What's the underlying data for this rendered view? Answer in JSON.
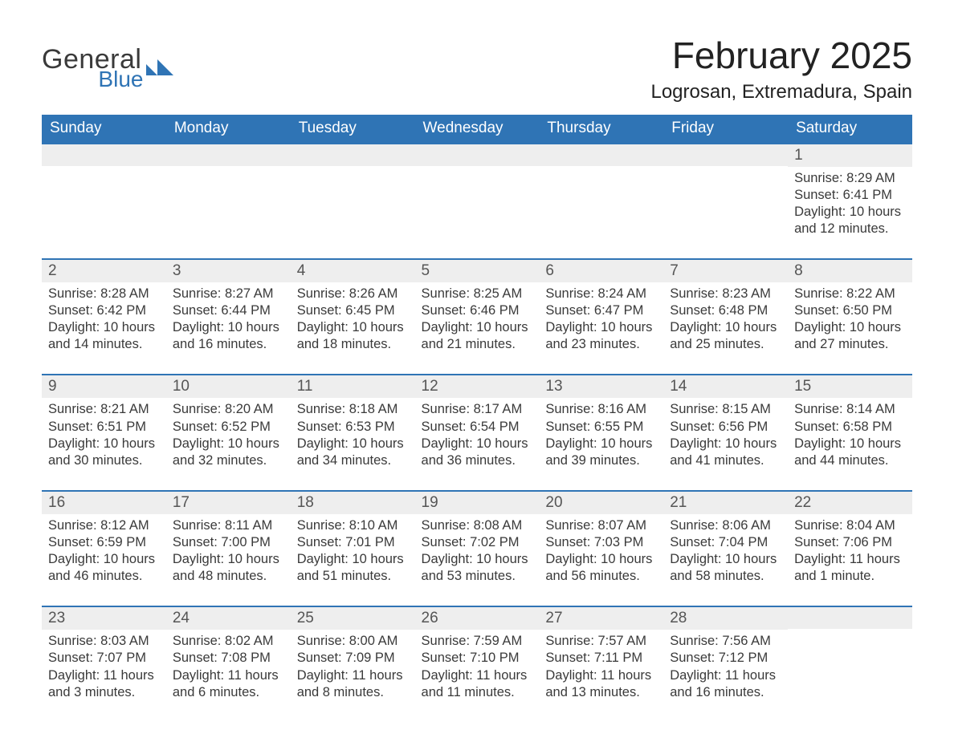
{
  "brand": {
    "general": "General",
    "blue": "Blue"
  },
  "title": "February 2025",
  "location": "Logrosan, Extremadura, Spain",
  "colors": {
    "accent": "#2f74b5",
    "row_band": "#eeeeee",
    "text": "#2b2b2b",
    "background": "#ffffff"
  },
  "dow": [
    "Sunday",
    "Monday",
    "Tuesday",
    "Wednesday",
    "Thursday",
    "Friday",
    "Saturday"
  ],
  "weeks": [
    [
      {
        "day": "",
        "sunrise": "",
        "sunset": "",
        "daylight": ""
      },
      {
        "day": "",
        "sunrise": "",
        "sunset": "",
        "daylight": ""
      },
      {
        "day": "",
        "sunrise": "",
        "sunset": "",
        "daylight": ""
      },
      {
        "day": "",
        "sunrise": "",
        "sunset": "",
        "daylight": ""
      },
      {
        "day": "",
        "sunrise": "",
        "sunset": "",
        "daylight": ""
      },
      {
        "day": "",
        "sunrise": "",
        "sunset": "",
        "daylight": ""
      },
      {
        "day": "1",
        "sunrise": "Sunrise: 8:29 AM",
        "sunset": "Sunset: 6:41 PM",
        "daylight": "Daylight: 10 hours and 12 minutes."
      }
    ],
    [
      {
        "day": "2",
        "sunrise": "Sunrise: 8:28 AM",
        "sunset": "Sunset: 6:42 PM",
        "daylight": "Daylight: 10 hours and 14 minutes."
      },
      {
        "day": "3",
        "sunrise": "Sunrise: 8:27 AM",
        "sunset": "Sunset: 6:44 PM",
        "daylight": "Daylight: 10 hours and 16 minutes."
      },
      {
        "day": "4",
        "sunrise": "Sunrise: 8:26 AM",
        "sunset": "Sunset: 6:45 PM",
        "daylight": "Daylight: 10 hours and 18 minutes."
      },
      {
        "day": "5",
        "sunrise": "Sunrise: 8:25 AM",
        "sunset": "Sunset: 6:46 PM",
        "daylight": "Daylight: 10 hours and 21 minutes."
      },
      {
        "day": "6",
        "sunrise": "Sunrise: 8:24 AM",
        "sunset": "Sunset: 6:47 PM",
        "daylight": "Daylight: 10 hours and 23 minutes."
      },
      {
        "day": "7",
        "sunrise": "Sunrise: 8:23 AM",
        "sunset": "Sunset: 6:48 PM",
        "daylight": "Daylight: 10 hours and 25 minutes."
      },
      {
        "day": "8",
        "sunrise": "Sunrise: 8:22 AM",
        "sunset": "Sunset: 6:50 PM",
        "daylight": "Daylight: 10 hours and 27 minutes."
      }
    ],
    [
      {
        "day": "9",
        "sunrise": "Sunrise: 8:21 AM",
        "sunset": "Sunset: 6:51 PM",
        "daylight": "Daylight: 10 hours and 30 minutes."
      },
      {
        "day": "10",
        "sunrise": "Sunrise: 8:20 AM",
        "sunset": "Sunset: 6:52 PM",
        "daylight": "Daylight: 10 hours and 32 minutes."
      },
      {
        "day": "11",
        "sunrise": "Sunrise: 8:18 AM",
        "sunset": "Sunset: 6:53 PM",
        "daylight": "Daylight: 10 hours and 34 minutes."
      },
      {
        "day": "12",
        "sunrise": "Sunrise: 8:17 AM",
        "sunset": "Sunset: 6:54 PM",
        "daylight": "Daylight: 10 hours and 36 minutes."
      },
      {
        "day": "13",
        "sunrise": "Sunrise: 8:16 AM",
        "sunset": "Sunset: 6:55 PM",
        "daylight": "Daylight: 10 hours and 39 minutes."
      },
      {
        "day": "14",
        "sunrise": "Sunrise: 8:15 AM",
        "sunset": "Sunset: 6:56 PM",
        "daylight": "Daylight: 10 hours and 41 minutes."
      },
      {
        "day": "15",
        "sunrise": "Sunrise: 8:14 AM",
        "sunset": "Sunset: 6:58 PM",
        "daylight": "Daylight: 10 hours and 44 minutes."
      }
    ],
    [
      {
        "day": "16",
        "sunrise": "Sunrise: 8:12 AM",
        "sunset": "Sunset: 6:59 PM",
        "daylight": "Daylight: 10 hours and 46 minutes."
      },
      {
        "day": "17",
        "sunrise": "Sunrise: 8:11 AM",
        "sunset": "Sunset: 7:00 PM",
        "daylight": "Daylight: 10 hours and 48 minutes."
      },
      {
        "day": "18",
        "sunrise": "Sunrise: 8:10 AM",
        "sunset": "Sunset: 7:01 PM",
        "daylight": "Daylight: 10 hours and 51 minutes."
      },
      {
        "day": "19",
        "sunrise": "Sunrise: 8:08 AM",
        "sunset": "Sunset: 7:02 PM",
        "daylight": "Daylight: 10 hours and 53 minutes."
      },
      {
        "day": "20",
        "sunrise": "Sunrise: 8:07 AM",
        "sunset": "Sunset: 7:03 PM",
        "daylight": "Daylight: 10 hours and 56 minutes."
      },
      {
        "day": "21",
        "sunrise": "Sunrise: 8:06 AM",
        "sunset": "Sunset: 7:04 PM",
        "daylight": "Daylight: 10 hours and 58 minutes."
      },
      {
        "day": "22",
        "sunrise": "Sunrise: 8:04 AM",
        "sunset": "Sunset: 7:06 PM",
        "daylight": "Daylight: 11 hours and 1 minute."
      }
    ],
    [
      {
        "day": "23",
        "sunrise": "Sunrise: 8:03 AM",
        "sunset": "Sunset: 7:07 PM",
        "daylight": "Daylight: 11 hours and 3 minutes."
      },
      {
        "day": "24",
        "sunrise": "Sunrise: 8:02 AM",
        "sunset": "Sunset: 7:08 PM",
        "daylight": "Daylight: 11 hours and 6 minutes."
      },
      {
        "day": "25",
        "sunrise": "Sunrise: 8:00 AM",
        "sunset": "Sunset: 7:09 PM",
        "daylight": "Daylight: 11 hours and 8 minutes."
      },
      {
        "day": "26",
        "sunrise": "Sunrise: 7:59 AM",
        "sunset": "Sunset: 7:10 PM",
        "daylight": "Daylight: 11 hours and 11 minutes."
      },
      {
        "day": "27",
        "sunrise": "Sunrise: 7:57 AM",
        "sunset": "Sunset: 7:11 PM",
        "daylight": "Daylight: 11 hours and 13 minutes."
      },
      {
        "day": "28",
        "sunrise": "Sunrise: 7:56 AM",
        "sunset": "Sunset: 7:12 PM",
        "daylight": "Daylight: 11 hours and 16 minutes."
      },
      {
        "day": "",
        "sunrise": "",
        "sunset": "",
        "daylight": ""
      }
    ]
  ]
}
